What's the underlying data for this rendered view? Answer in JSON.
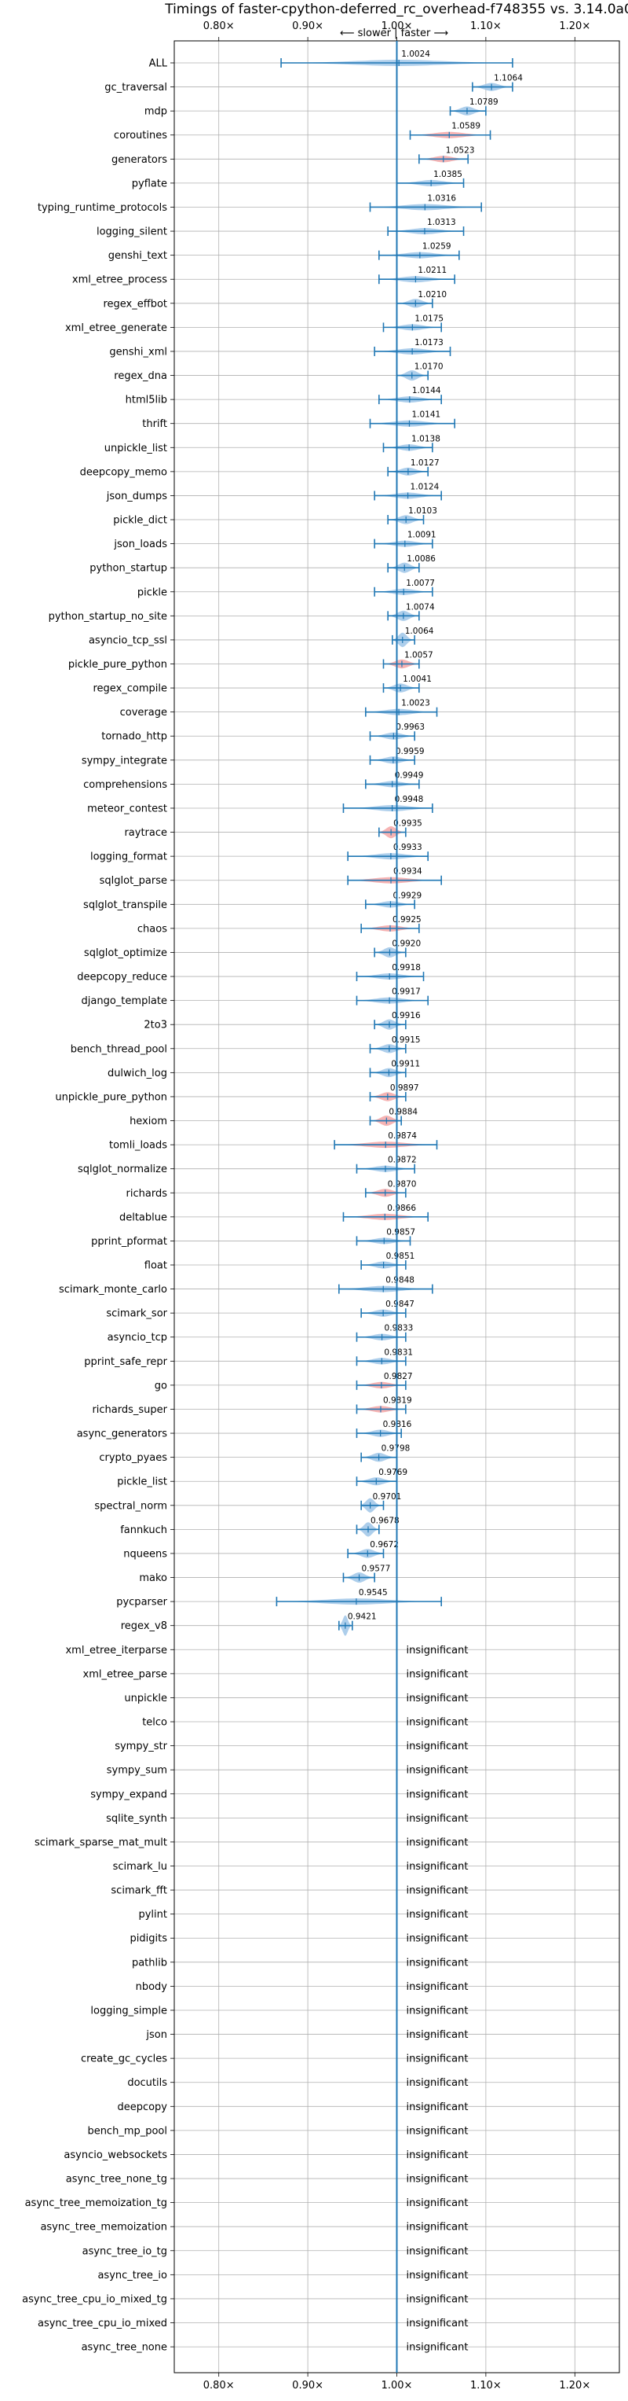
{
  "chart_data": {
    "type": "violin",
    "title": "Timings of faster-cpython-deferred_rc_overhead-f748355 vs. 3.14.0a0",
    "direction_label": "⟵ slower | faster ⟶",
    "x_ticks": [
      "0.80×",
      "0.90×",
      "1.00×",
      "1.10×",
      "1.20×"
    ],
    "x_tick_values": [
      0.8,
      0.9,
      1.0,
      1.1,
      1.2
    ],
    "xlim": [
      0.75,
      1.25
    ],
    "reference_line": 1.0,
    "grid": true,
    "colors": {
      "faster": "#9fc5e8",
      "slower": "#f4a6a6",
      "line": "#1f77b4"
    },
    "insignificant_label": "insignificant",
    "rows": [
      {
        "name": "ALL",
        "value": 1.0024,
        "label": "1.0024",
        "lo": 0.87,
        "hi": 1.13,
        "color": "blue"
      },
      {
        "name": "gc_traversal",
        "value": 1.1064,
        "label": "1.1064",
        "lo": 1.085,
        "hi": 1.13,
        "color": "blue"
      },
      {
        "name": "mdp",
        "value": 1.0789,
        "label": "1.0789",
        "lo": 1.06,
        "hi": 1.1,
        "color": "blue"
      },
      {
        "name": "coroutines",
        "value": 1.0589,
        "label": "1.0589",
        "lo": 1.015,
        "hi": 1.105,
        "color": "red"
      },
      {
        "name": "generators",
        "value": 1.0523,
        "label": "1.0523",
        "lo": 1.025,
        "hi": 1.08,
        "color": "red"
      },
      {
        "name": "pyflate",
        "value": 1.0385,
        "label": "1.0385",
        "lo": 1.0,
        "hi": 1.075,
        "color": "blue"
      },
      {
        "name": "typing_runtime_protocols",
        "value": 1.0316,
        "label": "1.0316",
        "lo": 0.97,
        "hi": 1.095,
        "color": "blue"
      },
      {
        "name": "logging_silent",
        "value": 1.0313,
        "label": "1.0313",
        "lo": 0.99,
        "hi": 1.075,
        "color": "blue"
      },
      {
        "name": "genshi_text",
        "value": 1.0259,
        "label": "1.0259",
        "lo": 0.98,
        "hi": 1.07,
        "color": "blue"
      },
      {
        "name": "xml_etree_process",
        "value": 1.0211,
        "label": "1.0211",
        "lo": 0.98,
        "hi": 1.065,
        "color": "blue"
      },
      {
        "name": "regex_effbot",
        "value": 1.021,
        "label": "1.0210",
        "lo": 1.0,
        "hi": 1.04,
        "color": "blue"
      },
      {
        "name": "xml_etree_generate",
        "value": 1.0175,
        "label": "1.0175",
        "lo": 0.985,
        "hi": 1.05,
        "color": "blue"
      },
      {
        "name": "genshi_xml",
        "value": 1.0173,
        "label": "1.0173",
        "lo": 0.975,
        "hi": 1.06,
        "color": "blue"
      },
      {
        "name": "regex_dna",
        "value": 1.017,
        "label": "1.0170",
        "lo": 1.0,
        "hi": 1.035,
        "color": "blue"
      },
      {
        "name": "html5lib",
        "value": 1.0144,
        "label": "1.0144",
        "lo": 0.98,
        "hi": 1.05,
        "color": "blue"
      },
      {
        "name": "thrift",
        "value": 1.0141,
        "label": "1.0141",
        "lo": 0.97,
        "hi": 1.065,
        "color": "blue"
      },
      {
        "name": "unpickle_list",
        "value": 1.0138,
        "label": "1.0138",
        "lo": 0.985,
        "hi": 1.04,
        "color": "blue"
      },
      {
        "name": "deepcopy_memo",
        "value": 1.0127,
        "label": "1.0127",
        "lo": 0.99,
        "hi": 1.035,
        "color": "blue"
      },
      {
        "name": "json_dumps",
        "value": 1.0124,
        "label": "1.0124",
        "lo": 0.975,
        "hi": 1.05,
        "color": "blue"
      },
      {
        "name": "pickle_dict",
        "value": 1.0103,
        "label": "1.0103",
        "lo": 0.99,
        "hi": 1.03,
        "color": "blue"
      },
      {
        "name": "json_loads",
        "value": 1.0091,
        "label": "1.0091",
        "lo": 0.975,
        "hi": 1.04,
        "color": "blue"
      },
      {
        "name": "python_startup",
        "value": 1.0086,
        "label": "1.0086",
        "lo": 0.99,
        "hi": 1.025,
        "color": "blue"
      },
      {
        "name": "pickle",
        "value": 1.0077,
        "label": "1.0077",
        "lo": 0.975,
        "hi": 1.04,
        "color": "blue"
      },
      {
        "name": "python_startup_no_site",
        "value": 1.0074,
        "label": "1.0074",
        "lo": 0.99,
        "hi": 1.025,
        "color": "blue"
      },
      {
        "name": "asyncio_tcp_ssl",
        "value": 1.0064,
        "label": "1.0064",
        "lo": 0.995,
        "hi": 1.02,
        "color": "blue"
      },
      {
        "name": "pickle_pure_python",
        "value": 1.0057,
        "label": "1.0057",
        "lo": 0.985,
        "hi": 1.025,
        "color": "red"
      },
      {
        "name": "regex_compile",
        "value": 1.0041,
        "label": "1.0041",
        "lo": 0.985,
        "hi": 1.025,
        "color": "blue"
      },
      {
        "name": "coverage",
        "value": 1.0023,
        "label": "1.0023",
        "lo": 0.965,
        "hi": 1.045,
        "color": "blue"
      },
      {
        "name": "tornado_http",
        "value": 0.9963,
        "label": "0.9963",
        "lo": 0.97,
        "hi": 1.02,
        "color": "blue"
      },
      {
        "name": "sympy_integrate",
        "value": 0.9959,
        "label": "0.9959",
        "lo": 0.97,
        "hi": 1.02,
        "color": "blue"
      },
      {
        "name": "comprehensions",
        "value": 0.9949,
        "label": "0.9949",
        "lo": 0.965,
        "hi": 1.025,
        "color": "blue"
      },
      {
        "name": "meteor_contest",
        "value": 0.9948,
        "label": "0.9948",
        "lo": 0.94,
        "hi": 1.04,
        "color": "blue"
      },
      {
        "name": "raytrace",
        "value": 0.9935,
        "label": "0.9935",
        "lo": 0.98,
        "hi": 1.01,
        "color": "red"
      },
      {
        "name": "logging_format",
        "value": 0.9933,
        "label": "0.9933",
        "lo": 0.945,
        "hi": 1.035,
        "color": "blue"
      },
      {
        "name": "sqlglot_parse",
        "value": 0.9934,
        "label": "0.9934",
        "lo": 0.945,
        "hi": 1.05,
        "color": "red"
      },
      {
        "name": "sqlglot_transpile",
        "value": 0.9929,
        "label": "0.9929",
        "lo": 0.965,
        "hi": 1.02,
        "color": "blue"
      },
      {
        "name": "chaos",
        "value": 0.9925,
        "label": "0.9925",
        "lo": 0.96,
        "hi": 1.025,
        "color": "red"
      },
      {
        "name": "sqlglot_optimize",
        "value": 0.992,
        "label": "0.9920",
        "lo": 0.975,
        "hi": 1.01,
        "color": "blue"
      },
      {
        "name": "deepcopy_reduce",
        "value": 0.9918,
        "label": "0.9918",
        "lo": 0.955,
        "hi": 1.03,
        "color": "blue"
      },
      {
        "name": "django_template",
        "value": 0.9917,
        "label": "0.9917",
        "lo": 0.955,
        "hi": 1.035,
        "color": "blue"
      },
      {
        "name": "2to3",
        "value": 0.9916,
        "label": "0.9916",
        "lo": 0.975,
        "hi": 1.01,
        "color": "blue"
      },
      {
        "name": "bench_thread_pool",
        "value": 0.9915,
        "label": "0.9915",
        "lo": 0.97,
        "hi": 1.01,
        "color": "blue"
      },
      {
        "name": "dulwich_log",
        "value": 0.9911,
        "label": "0.9911",
        "lo": 0.97,
        "hi": 1.01,
        "color": "blue"
      },
      {
        "name": "unpickle_pure_python",
        "value": 0.9897,
        "label": "0.9897",
        "lo": 0.97,
        "hi": 1.01,
        "color": "red"
      },
      {
        "name": "hexiom",
        "value": 0.9884,
        "label": "0.9884",
        "lo": 0.97,
        "hi": 1.005,
        "color": "red"
      },
      {
        "name": "tomli_loads",
        "value": 0.9874,
        "label": "0.9874",
        "lo": 0.93,
        "hi": 1.045,
        "color": "red"
      },
      {
        "name": "sqlglot_normalize",
        "value": 0.9872,
        "label": "0.9872",
        "lo": 0.955,
        "hi": 1.02,
        "color": "blue"
      },
      {
        "name": "richards",
        "value": 0.987,
        "label": "0.9870",
        "lo": 0.965,
        "hi": 1.01,
        "color": "red"
      },
      {
        "name": "deltablue",
        "value": 0.9866,
        "label": "0.9866",
        "lo": 0.94,
        "hi": 1.035,
        "color": "red"
      },
      {
        "name": "pprint_pformat",
        "value": 0.9857,
        "label": "0.9857",
        "lo": 0.955,
        "hi": 1.015,
        "color": "blue"
      },
      {
        "name": "float",
        "value": 0.9851,
        "label": "0.9851",
        "lo": 0.96,
        "hi": 1.01,
        "color": "blue"
      },
      {
        "name": "scimark_monte_carlo",
        "value": 0.9848,
        "label": "0.9848",
        "lo": 0.935,
        "hi": 1.04,
        "color": "blue"
      },
      {
        "name": "scimark_sor",
        "value": 0.9847,
        "label": "0.9847",
        "lo": 0.96,
        "hi": 1.01,
        "color": "blue"
      },
      {
        "name": "asyncio_tcp",
        "value": 0.9833,
        "label": "0.9833",
        "lo": 0.955,
        "hi": 1.01,
        "color": "blue"
      },
      {
        "name": "pprint_safe_repr",
        "value": 0.9831,
        "label": "0.9831",
        "lo": 0.955,
        "hi": 1.01,
        "color": "blue"
      },
      {
        "name": "go",
        "value": 0.9827,
        "label": "0.9827",
        "lo": 0.955,
        "hi": 1.01,
        "color": "red"
      },
      {
        "name": "richards_super",
        "value": 0.9819,
        "label": "0.9819",
        "lo": 0.955,
        "hi": 1.01,
        "color": "red"
      },
      {
        "name": "async_generators",
        "value": 0.9816,
        "label": "0.9816",
        "lo": 0.955,
        "hi": 1.005,
        "color": "blue"
      },
      {
        "name": "crypto_pyaes",
        "value": 0.9798,
        "label": "0.9798",
        "lo": 0.96,
        "hi": 1.0,
        "color": "blue"
      },
      {
        "name": "pickle_list",
        "value": 0.9769,
        "label": "0.9769",
        "lo": 0.955,
        "hi": 1.0,
        "color": "blue"
      },
      {
        "name": "spectral_norm",
        "value": 0.9701,
        "label": "0.9701",
        "lo": 0.96,
        "hi": 0.985,
        "color": "blue"
      },
      {
        "name": "fannkuch",
        "value": 0.9678,
        "label": "0.9678",
        "lo": 0.955,
        "hi": 0.98,
        "color": "blue"
      },
      {
        "name": "nqueens",
        "value": 0.9672,
        "label": "0.9672",
        "lo": 0.945,
        "hi": 0.985,
        "color": "blue"
      },
      {
        "name": "mako",
        "value": 0.9577,
        "label": "0.9577",
        "lo": 0.94,
        "hi": 0.975,
        "color": "blue"
      },
      {
        "name": "pycparser",
        "value": 0.9545,
        "label": "0.9545",
        "lo": 0.865,
        "hi": 1.05,
        "color": "blue"
      },
      {
        "name": "regex_v8",
        "value": 0.9421,
        "label": "0.9421",
        "lo": 0.935,
        "hi": 0.95,
        "color": "blue"
      },
      {
        "name": "xml_etree_iterparse",
        "insignificant": true
      },
      {
        "name": "xml_etree_parse",
        "insignificant": true
      },
      {
        "name": "unpickle",
        "insignificant": true
      },
      {
        "name": "telco",
        "insignificant": true
      },
      {
        "name": "sympy_str",
        "insignificant": true
      },
      {
        "name": "sympy_sum",
        "insignificant": true
      },
      {
        "name": "sympy_expand",
        "insignificant": true
      },
      {
        "name": "sqlite_synth",
        "insignificant": true
      },
      {
        "name": "scimark_sparse_mat_mult",
        "insignificant": true
      },
      {
        "name": "scimark_lu",
        "insignificant": true
      },
      {
        "name": "scimark_fft",
        "insignificant": true
      },
      {
        "name": "pylint",
        "insignificant": true
      },
      {
        "name": "pidigits",
        "insignificant": true
      },
      {
        "name": "pathlib",
        "insignificant": true
      },
      {
        "name": "nbody",
        "insignificant": true
      },
      {
        "name": "logging_simple",
        "insignificant": true
      },
      {
        "name": "json",
        "insignificant": true
      },
      {
        "name": "create_gc_cycles",
        "insignificant": true
      },
      {
        "name": "docutils",
        "insignificant": true
      },
      {
        "name": "deepcopy",
        "insignificant": true
      },
      {
        "name": "bench_mp_pool",
        "insignificant": true
      },
      {
        "name": "asyncio_websockets",
        "insignificant": true
      },
      {
        "name": "async_tree_none_tg",
        "insignificant": true
      },
      {
        "name": "async_tree_memoization_tg",
        "insignificant": true
      },
      {
        "name": "async_tree_memoization",
        "insignificant": true
      },
      {
        "name": "async_tree_io_tg",
        "insignificant": true
      },
      {
        "name": "async_tree_io",
        "insignificant": true
      },
      {
        "name": "async_tree_cpu_io_mixed_tg",
        "insignificant": true
      },
      {
        "name": "async_tree_cpu_io_mixed",
        "insignificant": true
      },
      {
        "name": "async_tree_none",
        "insignificant": true
      }
    ]
  }
}
